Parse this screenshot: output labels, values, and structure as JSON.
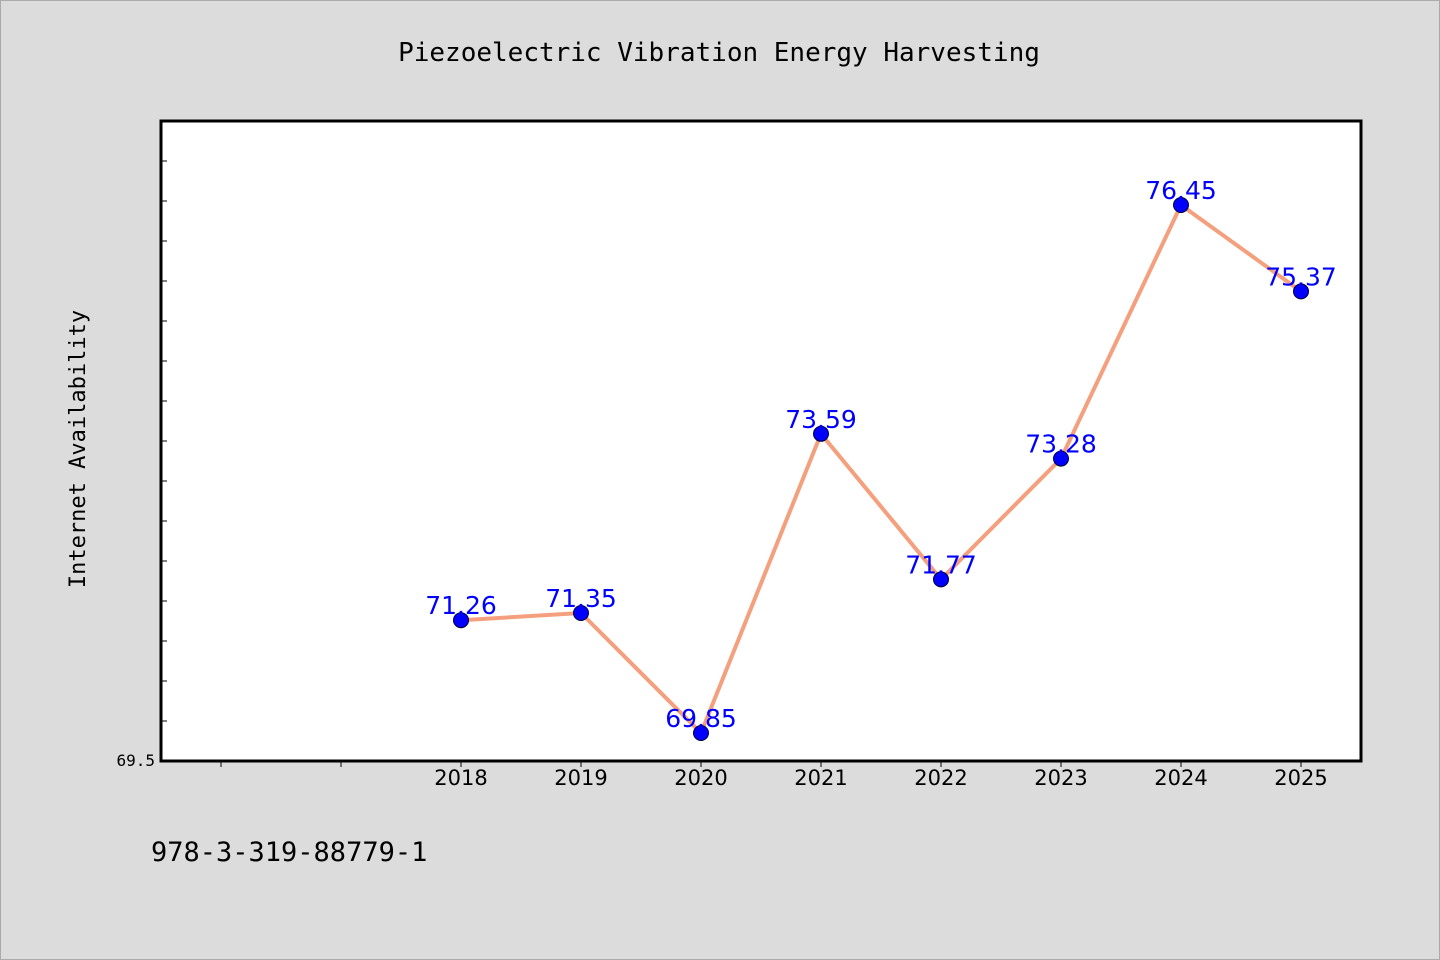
{
  "chart_data": {
    "type": "line",
    "title": "Piezoelectric Vibration Energy Harvesting",
    "xlabel": "",
    "ylabel": "Internet Availability",
    "categories": [
      "2018",
      "2019",
      "2020",
      "2021",
      "2022",
      "2023",
      "2024",
      "2025"
    ],
    "series": [
      {
        "values": [
          71.26,
          71.35,
          69.85,
          73.59,
          71.77,
          73.28,
          76.45,
          75.37
        ],
        "data_labels": [
          "71.26",
          "71.35",
          "69.85",
          "73.59",
          "71.77",
          "73.28",
          "76.45",
          "75.37"
        ]
      }
    ],
    "ylim": [
      69.5,
      77.5
    ],
    "xlim": [
      2015.5,
      2025.5
    ],
    "y_tick_labels": [
      "69.5"
    ],
    "grid": false,
    "legend": "none",
    "colors": {
      "line": "#f4a07e",
      "marker": "#0000ff",
      "data_label": "#0000ff",
      "plot_background": "#ffffff",
      "figure_background": "#dcdcdc"
    }
  },
  "footer": {
    "isbn": "978-3-319-88779-1"
  }
}
